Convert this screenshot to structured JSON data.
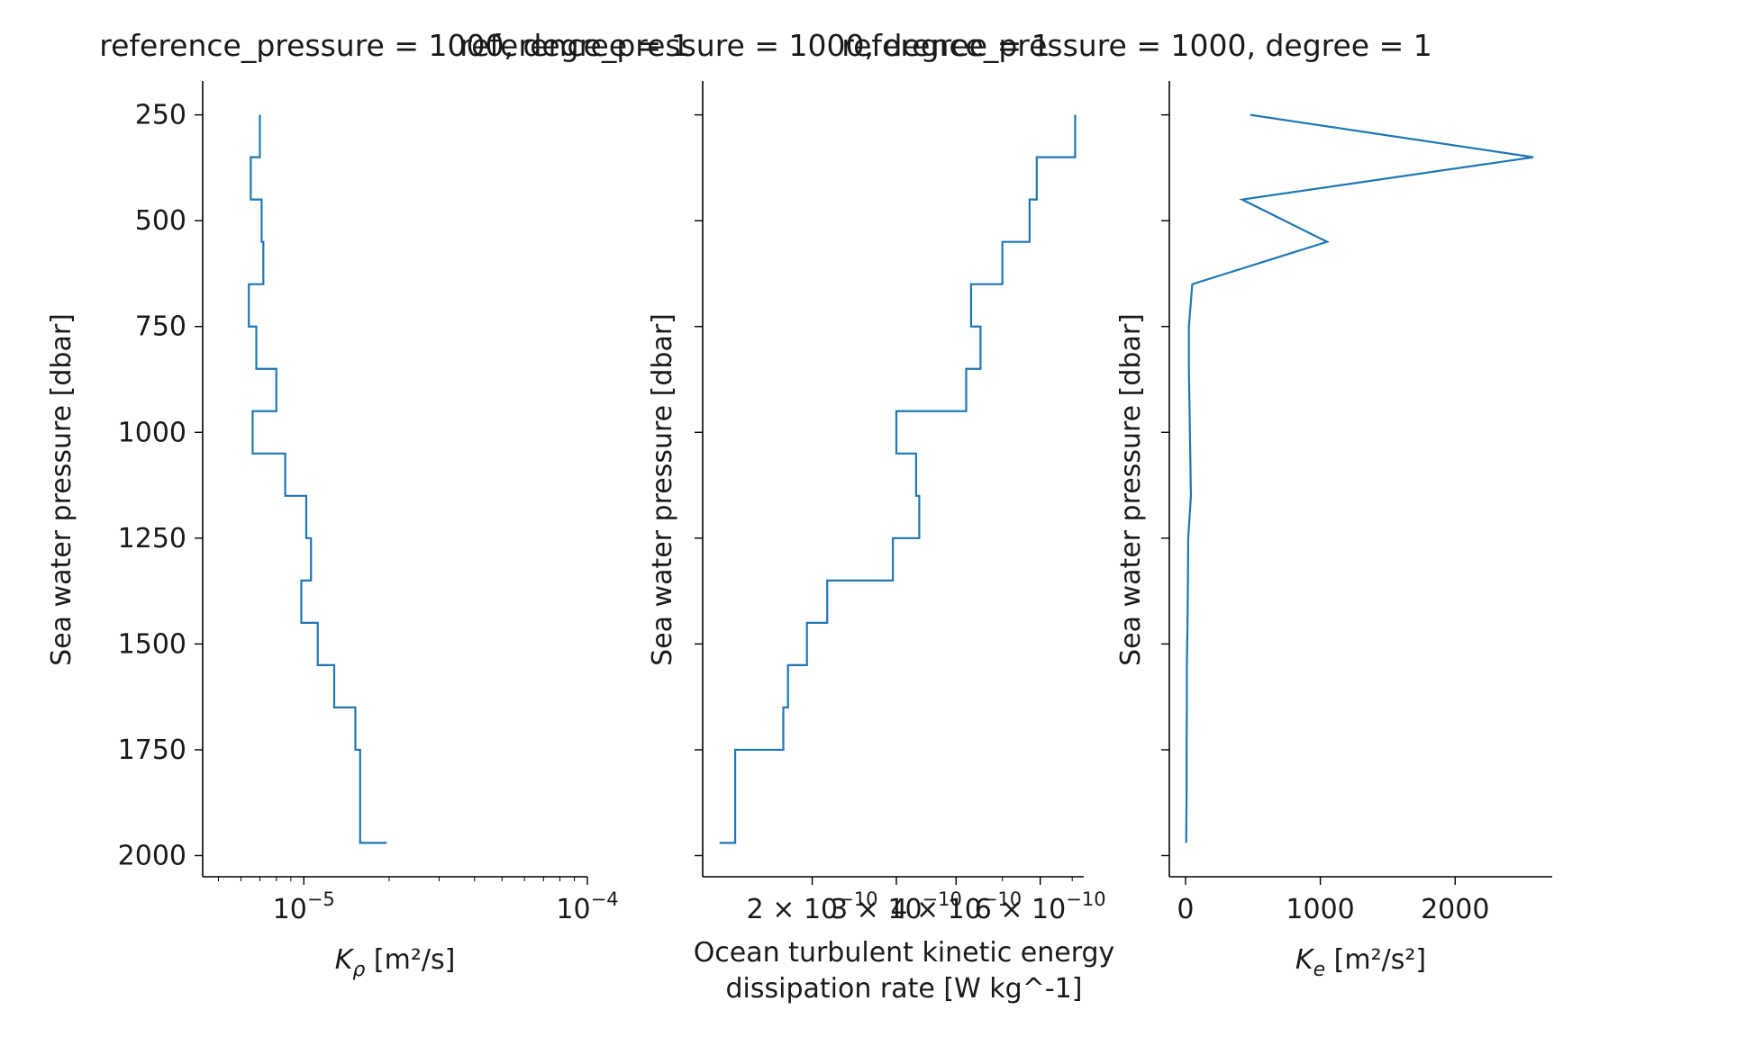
{
  "colors": {
    "series": "#1f77b4",
    "axis": "#000000",
    "text": "#1a1a1a"
  },
  "chart_data": [
    {
      "type": "line",
      "drawstyle": "steps",
      "title": "reference_pressure = 1000, degree = 1",
      "xlabel": "K_ρ [m²/s]",
      "xlabel_parts": {
        "main": "K",
        "sub": "ρ",
        "unit": " [m²/s]"
      },
      "ylabel": "Sea water pressure [dbar]",
      "xscale": "log",
      "xlim": [
        4.4e-06,
        0.0001
      ],
      "ylim": [
        2050,
        170
      ],
      "y_inverted": true,
      "x_ticks": [
        {
          "value": 1e-05,
          "base": "10",
          "exp": "−5"
        },
        {
          "value": 0.0001,
          "base": "10",
          "exp": "−4"
        }
      ],
      "y_ticks": [
        {
          "value": 250,
          "label": "250"
        },
        {
          "value": 500,
          "label": "500"
        },
        {
          "value": 750,
          "label": "750"
        },
        {
          "value": 1000,
          "label": "1000"
        },
        {
          "value": 1250,
          "label": "1250"
        },
        {
          "value": 1500,
          "label": "1500"
        },
        {
          "value": 1750,
          "label": "1750"
        },
        {
          "value": 2000,
          "label": "2000"
        }
      ],
      "show_y_tick_labels": true,
      "grid": false,
      "series": [
        {
          "points": [
            [
              7e-06,
              250
            ],
            [
              7e-06,
              350
            ],
            [
              6.5e-06,
              350
            ],
            [
              6.5e-06,
              450
            ],
            [
              7.1e-06,
              450
            ],
            [
              7.1e-06,
              550
            ],
            [
              7.2e-06,
              550
            ],
            [
              7.2e-06,
              650
            ],
            [
              6.4e-06,
              650
            ],
            [
              6.4e-06,
              750
            ],
            [
              6.8e-06,
              750
            ],
            [
              6.8e-06,
              850
            ],
            [
              8e-06,
              850
            ],
            [
              8e-06,
              950
            ],
            [
              6.6e-06,
              950
            ],
            [
              6.6e-06,
              1050
            ],
            [
              8.6e-06,
              1050
            ],
            [
              8.6e-06,
              1150
            ],
            [
              1.02e-05,
              1150
            ],
            [
              1.02e-05,
              1250
            ],
            [
              1.06e-05,
              1250
            ],
            [
              1.06e-05,
              1350
            ],
            [
              9.8e-06,
              1350
            ],
            [
              9.8e-06,
              1450
            ],
            [
              1.12e-05,
              1450
            ],
            [
              1.12e-05,
              1550
            ],
            [
              1.28e-05,
              1550
            ],
            [
              1.28e-05,
              1650
            ],
            [
              1.52e-05,
              1650
            ],
            [
              1.52e-05,
              1750
            ],
            [
              1.58e-05,
              1750
            ],
            [
              1.58e-05,
              1970
            ],
            [
              1.96e-05,
              1970
            ]
          ]
        }
      ]
    },
    {
      "type": "line",
      "drawstyle": "steps",
      "title": "reference_pressure = 1000, degree = 1",
      "xlabel_lines": [
        "Ocean turbulent kinetic energy",
        "dissipation rate [W kg^-1]"
      ],
      "ylabel": "Sea water pressure [dbar]",
      "xscale": "log",
      "xlim": [
        1.18e-10,
        7.4e-10
      ],
      "ylim": [
        2050,
        170
      ],
      "y_inverted": true,
      "x_ticks": [
        {
          "value": 2e-10,
          "mant": "2 × 10",
          "exp": "−10"
        },
        {
          "value": 3e-10,
          "mant": "3 × 10",
          "exp": "−10"
        },
        {
          "value": 4e-10,
          "mant": "4 × 10",
          "exp": "−10"
        },
        {
          "value": 6e-10,
          "mant": "6 × 10",
          "exp": "−10"
        }
      ],
      "y_ticks": [
        {
          "value": 250
        },
        {
          "value": 500
        },
        {
          "value": 750
        },
        {
          "value": 1000
        },
        {
          "value": 1250
        },
        {
          "value": 1500
        },
        {
          "value": 1750
        },
        {
          "value": 2000
        }
      ],
      "show_y_tick_labels": false,
      "grid": false,
      "series": [
        {
          "points": [
            [
              7.1e-10,
              250
            ],
            [
              7.1e-10,
              350
            ],
            [
              5.9e-10,
              350
            ],
            [
              5.9e-10,
              450
            ],
            [
              5.7e-10,
              450
            ],
            [
              5.7e-10,
              550
            ],
            [
              5e-10,
              550
            ],
            [
              5e-10,
              650
            ],
            [
              4.3e-10,
              650
            ],
            [
              4.3e-10,
              750
            ],
            [
              4.5e-10,
              750
            ],
            [
              4.5e-10,
              850
            ],
            [
              4.2e-10,
              850
            ],
            [
              4.2e-10,
              950
            ],
            [
              3e-10,
              950
            ],
            [
              3e-10,
              1050
            ],
            [
              3.3e-10,
              1050
            ],
            [
              3.3e-10,
              1150
            ],
            [
              3.35e-10,
              1150
            ],
            [
              3.35e-10,
              1250
            ],
            [
              2.95e-10,
              1250
            ],
            [
              2.95e-10,
              1350
            ],
            [
              2.15e-10,
              1350
            ],
            [
              2.15e-10,
              1450
            ],
            [
              1.95e-10,
              1450
            ],
            [
              1.95e-10,
              1550
            ],
            [
              1.78e-10,
              1550
            ],
            [
              1.78e-10,
              1650
            ],
            [
              1.74e-10,
              1650
            ],
            [
              1.74e-10,
              1750
            ],
            [
              1.38e-10,
              1750
            ],
            [
              1.38e-10,
              1970
            ],
            [
              1.28e-10,
              1970
            ]
          ]
        }
      ]
    },
    {
      "type": "line",
      "drawstyle": "default",
      "title": "reference_pressure = 1000, degree = 1",
      "xlabel": "K_e [m²/s²]",
      "xlabel_parts": {
        "main": "K",
        "sub": "e",
        "unit": " [m²/s²]"
      },
      "ylabel": "Sea water pressure [dbar]",
      "xscale": "linear",
      "xlim": [
        -120,
        2720
      ],
      "ylim": [
        2050,
        170
      ],
      "y_inverted": true,
      "x_ticks": [
        {
          "value": 0,
          "label": "0"
        },
        {
          "value": 1000,
          "label": "1000"
        },
        {
          "value": 2000,
          "label": "2000"
        }
      ],
      "y_ticks": [
        {
          "value": 250
        },
        {
          "value": 500
        },
        {
          "value": 750
        },
        {
          "value": 1000
        },
        {
          "value": 1250
        },
        {
          "value": 1500
        },
        {
          "value": 1750
        },
        {
          "value": 2000
        }
      ],
      "show_y_tick_labels": false,
      "grid": false,
      "series": [
        {
          "points": [
            [
              480,
              250
            ],
            [
              2580,
              350
            ],
            [
              420,
              450
            ],
            [
              1050,
              550
            ],
            [
              50,
              650
            ],
            [
              25,
              750
            ],
            [
              25,
              850
            ],
            [
              30,
              950
            ],
            [
              35,
              1050
            ],
            [
              40,
              1150
            ],
            [
              20,
              1250
            ],
            [
              18,
              1350
            ],
            [
              15,
              1450
            ],
            [
              10,
              1550
            ],
            [
              10,
              1650
            ],
            [
              8,
              1750
            ],
            [
              8,
              1850
            ],
            [
              5,
              1970
            ]
          ]
        }
      ]
    }
  ]
}
